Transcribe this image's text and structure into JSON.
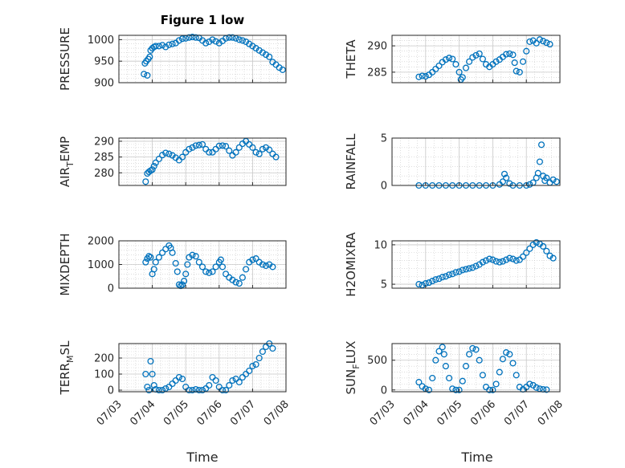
{
  "figure": {
    "title": "Figure 1 low",
    "xlabel": "Time"
  },
  "colors": {
    "marker": "#0072BD",
    "axis": "#262626",
    "grid": "#c8c8c8"
  },
  "x_tick_labels": [
    "07/03",
    "07/04",
    "07/05",
    "07/06",
    "07/07",
    "07/08"
  ],
  "chart_data": [
    {
      "type": "scatter",
      "ylabel": "PRESSURE",
      "xlim": [
        0,
        5
      ],
      "ylim": [
        900,
        1010
      ],
      "yticks": [
        900,
        950,
        1000
      ],
      "grid": true,
      "points": [
        [
          0.75,
          920
        ],
        [
          0.85,
          917
        ],
        [
          0.78,
          945
        ],
        [
          0.82,
          950
        ],
        [
          0.88,
          955
        ],
        [
          0.92,
          960
        ],
        [
          0.95,
          975
        ],
        [
          1.0,
          980
        ],
        [
          1.05,
          983
        ],
        [
          1.1,
          985
        ],
        [
          1.2,
          985
        ],
        [
          1.3,
          987
        ],
        [
          1.4,
          983
        ],
        [
          1.5,
          988
        ],
        [
          1.6,
          990
        ],
        [
          1.7,
          992
        ],
        [
          1.8,
          998
        ],
        [
          1.9,
          1002
        ],
        [
          2.0,
          1003
        ],
        [
          2.1,
          1005
        ],
        [
          2.2,
          1006
        ],
        [
          2.3,
          1005
        ],
        [
          2.4,
          1004
        ],
        [
          2.5,
          998
        ],
        [
          2.6,
          992
        ],
        [
          2.7,
          995
        ],
        [
          2.8,
          1000
        ],
        [
          2.9,
          996
        ],
        [
          3.0,
          992
        ],
        [
          3.1,
          997
        ],
        [
          3.2,
          1003
        ],
        [
          3.3,
          1005
        ],
        [
          3.4,
          1005
        ],
        [
          3.5,
          1003
        ],
        [
          3.6,
          1000
        ],
        [
          3.7,
          998
        ],
        [
          3.8,
          995
        ],
        [
          3.9,
          990
        ],
        [
          4.0,
          985
        ],
        [
          4.1,
          980
        ],
        [
          4.2,
          975
        ],
        [
          4.3,
          970
        ],
        [
          4.4,
          965
        ],
        [
          4.5,
          960
        ],
        [
          4.6,
          948
        ],
        [
          4.7,
          942
        ],
        [
          4.8,
          935
        ],
        [
          4.9,
          930
        ]
      ]
    },
    {
      "type": "scatter",
      "ylabel": "THETA",
      "xlim": [
        0,
        5
      ],
      "ylim": [
        283,
        292
      ],
      "yticks": [
        285,
        290
      ],
      "grid": true,
      "points": [
        [
          0.8,
          284.1
        ],
        [
          0.9,
          284.3
        ],
        [
          1.0,
          284.2
        ],
        [
          1.1,
          284.5
        ],
        [
          1.2,
          285
        ],
        [
          1.3,
          285.6
        ],
        [
          1.4,
          286.2
        ],
        [
          1.5,
          286.9
        ],
        [
          1.6,
          287.4
        ],
        [
          1.7,
          287.7
        ],
        [
          1.8,
          287.5
        ],
        [
          1.9,
          286.5
        ],
        [
          2.0,
          285
        ],
        [
          2.05,
          283.6
        ],
        [
          2.1,
          284
        ],
        [
          2.2,
          285.8
        ],
        [
          2.3,
          287
        ],
        [
          2.4,
          287.8
        ],
        [
          2.5,
          288.2
        ],
        [
          2.6,
          288.5
        ],
        [
          2.7,
          287.5
        ],
        [
          2.8,
          286.5
        ],
        [
          2.9,
          286
        ],
        [
          3.0,
          286.5
        ],
        [
          3.1,
          287
        ],
        [
          3.2,
          287.4
        ],
        [
          3.3,
          287.9
        ],
        [
          3.4,
          288.4
        ],
        [
          3.5,
          288.5
        ],
        [
          3.6,
          288.3
        ],
        [
          3.65,
          286.8
        ],
        [
          3.7,
          285.2
        ],
        [
          3.8,
          285
        ],
        [
          3.9,
          287
        ],
        [
          4.0,
          289
        ],
        [
          4.1,
          290.8
        ],
        [
          4.2,
          291
        ],
        [
          4.3,
          290.5
        ],
        [
          4.4,
          291.2
        ],
        [
          4.5,
          290.9
        ],
        [
          4.6,
          290.6
        ],
        [
          4.7,
          290.3
        ]
      ]
    },
    {
      "type": "scatter",
      "ylabel": "AIR_TEMP",
      "xlim": [
        0,
        5
      ],
      "ylim": [
        276,
        291
      ],
      "yticks": [
        280,
        285,
        290
      ],
      "grid": true,
      "points": [
        [
          0.8,
          277.2
        ],
        [
          0.85,
          279.8
        ],
        [
          0.9,
          280.3
        ],
        [
          0.95,
          280.7
        ],
        [
          1.0,
          281
        ],
        [
          1.05,
          282.1
        ],
        [
          1.1,
          283.2
        ],
        [
          1.2,
          284.4
        ],
        [
          1.3,
          285.6
        ],
        [
          1.4,
          286.3
        ],
        [
          1.5,
          286
        ],
        [
          1.6,
          285.5
        ],
        [
          1.7,
          284.8
        ],
        [
          1.8,
          284
        ],
        [
          1.9,
          285
        ],
        [
          2.0,
          286.5
        ],
        [
          2.1,
          287.5
        ],
        [
          2.2,
          288
        ],
        [
          2.3,
          288.6
        ],
        [
          2.4,
          288.8
        ],
        [
          2.5,
          289
        ],
        [
          2.6,
          287.5
        ],
        [
          2.7,
          286.5
        ],
        [
          2.8,
          286.5
        ],
        [
          2.9,
          287.5
        ],
        [
          3.0,
          288.5
        ],
        [
          3.1,
          288.6
        ],
        [
          3.2,
          288.4
        ],
        [
          3.3,
          287
        ],
        [
          3.4,
          285.5
        ],
        [
          3.5,
          286.5
        ],
        [
          3.6,
          288
        ],
        [
          3.7,
          289.2
        ],
        [
          3.8,
          290
        ],
        [
          3.9,
          289
        ],
        [
          4.0,
          288
        ],
        [
          4.1,
          286.5
        ],
        [
          4.2,
          286
        ],
        [
          4.3,
          287.5
        ],
        [
          4.4,
          288
        ],
        [
          4.5,
          287.3
        ],
        [
          4.6,
          286
        ],
        [
          4.7,
          285
        ]
      ]
    },
    {
      "type": "scatter",
      "ylabel": "RAINFALL",
      "xlim": [
        0,
        5
      ],
      "ylim": [
        0,
        5
      ],
      "yticks": [
        0,
        5
      ],
      "grid": true,
      "points": [
        [
          0.8,
          0
        ],
        [
          1.0,
          0
        ],
        [
          1.2,
          0
        ],
        [
          1.4,
          0
        ],
        [
          1.6,
          0
        ],
        [
          1.8,
          0
        ],
        [
          2.0,
          0
        ],
        [
          2.2,
          0
        ],
        [
          2.4,
          0
        ],
        [
          2.6,
          0
        ],
        [
          2.8,
          0
        ],
        [
          3.0,
          0
        ],
        [
          3.2,
          0.1
        ],
        [
          3.3,
          0.4
        ],
        [
          3.35,
          1.2
        ],
        [
          3.4,
          0.8
        ],
        [
          3.5,
          0.2
        ],
        [
          3.6,
          0
        ],
        [
          3.8,
          0
        ],
        [
          4.0,
          0
        ],
        [
          4.1,
          0.1
        ],
        [
          4.2,
          0.3
        ],
        [
          4.3,
          0.8
        ],
        [
          4.35,
          1.3
        ],
        [
          4.4,
          2.5
        ],
        [
          4.45,
          4.3
        ],
        [
          4.5,
          1.0
        ],
        [
          4.55,
          0.5
        ],
        [
          4.6,
          0.8
        ],
        [
          4.7,
          0.3
        ],
        [
          4.8,
          0.6
        ],
        [
          4.9,
          0.4
        ]
      ]
    },
    {
      "type": "scatter",
      "ylabel": "MIXDEPTH",
      "xlim": [
        0,
        5
      ],
      "ylim": [
        0,
        2000
      ],
      "yticks": [
        0,
        1000,
        2000
      ],
      "grid": true,
      "points": [
        [
          0.8,
          1100
        ],
        [
          0.85,
          1250
        ],
        [
          0.9,
          1350
        ],
        [
          0.95,
          1300
        ],
        [
          1.0,
          600
        ],
        [
          1.05,
          800
        ],
        [
          1.1,
          1100
        ],
        [
          1.2,
          1300
        ],
        [
          1.3,
          1500
        ],
        [
          1.4,
          1650
        ],
        [
          1.5,
          1800
        ],
        [
          1.55,
          1700
        ],
        [
          1.6,
          1500
        ],
        [
          1.7,
          1050
        ],
        [
          1.75,
          700
        ],
        [
          1.8,
          150
        ],
        [
          1.85,
          100
        ],
        [
          1.9,
          150
        ],
        [
          1.95,
          300
        ],
        [
          2.0,
          600
        ],
        [
          2.05,
          1000
        ],
        [
          2.1,
          1300
        ],
        [
          2.2,
          1400
        ],
        [
          2.3,
          1350
        ],
        [
          2.4,
          1100
        ],
        [
          2.5,
          900
        ],
        [
          2.6,
          700
        ],
        [
          2.7,
          650
        ],
        [
          2.8,
          700
        ],
        [
          2.9,
          900
        ],
        [
          3.0,
          1100
        ],
        [
          3.05,
          1200
        ],
        [
          3.1,
          900
        ],
        [
          3.2,
          600
        ],
        [
          3.3,
          450
        ],
        [
          3.4,
          350
        ],
        [
          3.5,
          250
        ],
        [
          3.6,
          200
        ],
        [
          3.7,
          450
        ],
        [
          3.8,
          800
        ],
        [
          3.9,
          1100
        ],
        [
          4.0,
          1200
        ],
        [
          4.1,
          1250
        ],
        [
          4.2,
          1100
        ],
        [
          4.3,
          1000
        ],
        [
          4.4,
          950
        ],
        [
          4.5,
          1000
        ],
        [
          4.6,
          900
        ]
      ]
    },
    {
      "type": "scatter",
      "ylabel": "H2OMIXRA",
      "xlim": [
        0,
        5
      ],
      "ylim": [
        4.5,
        10.5
      ],
      "yticks": [
        5,
        10
      ],
      "grid": true,
      "points": [
        [
          0.8,
          5.0
        ],
        [
          0.9,
          4.9
        ],
        [
          1.0,
          5.1
        ],
        [
          1.1,
          5.2
        ],
        [
          1.2,
          5.4
        ],
        [
          1.3,
          5.6
        ],
        [
          1.4,
          5.7
        ],
        [
          1.5,
          5.9
        ],
        [
          1.6,
          6.0
        ],
        [
          1.7,
          6.2
        ],
        [
          1.8,
          6.3
        ],
        [
          1.9,
          6.5
        ],
        [
          2.0,
          6.6
        ],
        [
          2.1,
          6.8
        ],
        [
          2.2,
          6.9
        ],
        [
          2.3,
          7.0
        ],
        [
          2.4,
          7.1
        ],
        [
          2.5,
          7.3
        ],
        [
          2.6,
          7.5
        ],
        [
          2.7,
          7.8
        ],
        [
          2.8,
          8.0
        ],
        [
          2.9,
          8.2
        ],
        [
          3.0,
          8.1
        ],
        [
          3.1,
          7.9
        ],
        [
          3.2,
          7.8
        ],
        [
          3.3,
          7.9
        ],
        [
          3.4,
          8.1
        ],
        [
          3.5,
          8.3
        ],
        [
          3.6,
          8.2
        ],
        [
          3.7,
          8.0
        ],
        [
          3.8,
          8.1
        ],
        [
          3.9,
          8.5
        ],
        [
          4.0,
          9.0
        ],
        [
          4.1,
          9.5
        ],
        [
          4.2,
          10.0
        ],
        [
          4.3,
          10.3
        ],
        [
          4.4,
          10.1
        ],
        [
          4.5,
          9.8
        ],
        [
          4.6,
          9.2
        ],
        [
          4.7,
          8.6
        ],
        [
          4.8,
          8.3
        ]
      ]
    },
    {
      "type": "scatter",
      "ylabel": "TERR_MSL",
      "xlim": [
        0,
        5
      ],
      "ylim": [
        -10,
        290
      ],
      "yticks": [
        0,
        100,
        200
      ],
      "grid": true,
      "points": [
        [
          0.8,
          100
        ],
        [
          0.85,
          20
        ],
        [
          0.9,
          0
        ],
        [
          0.95,
          180
        ],
        [
          1.0,
          100
        ],
        [
          1.05,
          30
        ],
        [
          1.1,
          5
        ],
        [
          1.2,
          0
        ],
        [
          1.3,
          0
        ],
        [
          1.4,
          10
        ],
        [
          1.5,
          20
        ],
        [
          1.6,
          40
        ],
        [
          1.7,
          60
        ],
        [
          1.8,
          80
        ],
        [
          1.9,
          70
        ],
        [
          2.0,
          20
        ],
        [
          2.1,
          0
        ],
        [
          2.2,
          0
        ],
        [
          2.3,
          5
        ],
        [
          2.4,
          0
        ],
        [
          2.5,
          0
        ],
        [
          2.6,
          10
        ],
        [
          2.7,
          30
        ],
        [
          2.8,
          80
        ],
        [
          2.9,
          60
        ],
        [
          3.0,
          20
        ],
        [
          3.1,
          0
        ],
        [
          3.2,
          0
        ],
        [
          3.3,
          30
        ],
        [
          3.4,
          60
        ],
        [
          3.5,
          70
        ],
        [
          3.6,
          50
        ],
        [
          3.7,
          80
        ],
        [
          3.8,
          100
        ],
        [
          3.9,
          120
        ],
        [
          4.0,
          150
        ],
        [
          4.1,
          160
        ],
        [
          4.2,
          200
        ],
        [
          4.3,
          240
        ],
        [
          4.4,
          270
        ],
        [
          4.5,
          290
        ],
        [
          4.6,
          260
        ]
      ]
    },
    {
      "type": "scatter",
      "ylabel": "SUN_FLUX",
      "xlim": [
        0,
        5
      ],
      "ylim": [
        -30,
        780
      ],
      "yticks": [
        0,
        500
      ],
      "grid": true,
      "points": [
        [
          0.8,
          130
        ],
        [
          0.9,
          60
        ],
        [
          1.0,
          20
        ],
        [
          1.1,
          0
        ],
        [
          1.2,
          200
        ],
        [
          1.3,
          500
        ],
        [
          1.4,
          650
        ],
        [
          1.5,
          720
        ],
        [
          1.55,
          600
        ],
        [
          1.6,
          400
        ],
        [
          1.7,
          200
        ],
        [
          1.8,
          20
        ],
        [
          1.9,
          0
        ],
        [
          2.0,
          0
        ],
        [
          2.1,
          150
        ],
        [
          2.2,
          400
        ],
        [
          2.3,
          600
        ],
        [
          2.4,
          700
        ],
        [
          2.5,
          680
        ],
        [
          2.6,
          500
        ],
        [
          2.7,
          250
        ],
        [
          2.8,
          50
        ],
        [
          2.9,
          0
        ],
        [
          3.0,
          0
        ],
        [
          3.1,
          100
        ],
        [
          3.2,
          300
        ],
        [
          3.3,
          520
        ],
        [
          3.4,
          630
        ],
        [
          3.5,
          600
        ],
        [
          3.6,
          450
        ],
        [
          3.7,
          250
        ],
        [
          3.8,
          50
        ],
        [
          3.9,
          10
        ],
        [
          4.0,
          50
        ],
        [
          4.1,
          100
        ],
        [
          4.2,
          80
        ],
        [
          4.3,
          40
        ],
        [
          4.4,
          20
        ],
        [
          4.5,
          10
        ],
        [
          4.6,
          5
        ]
      ]
    }
  ]
}
